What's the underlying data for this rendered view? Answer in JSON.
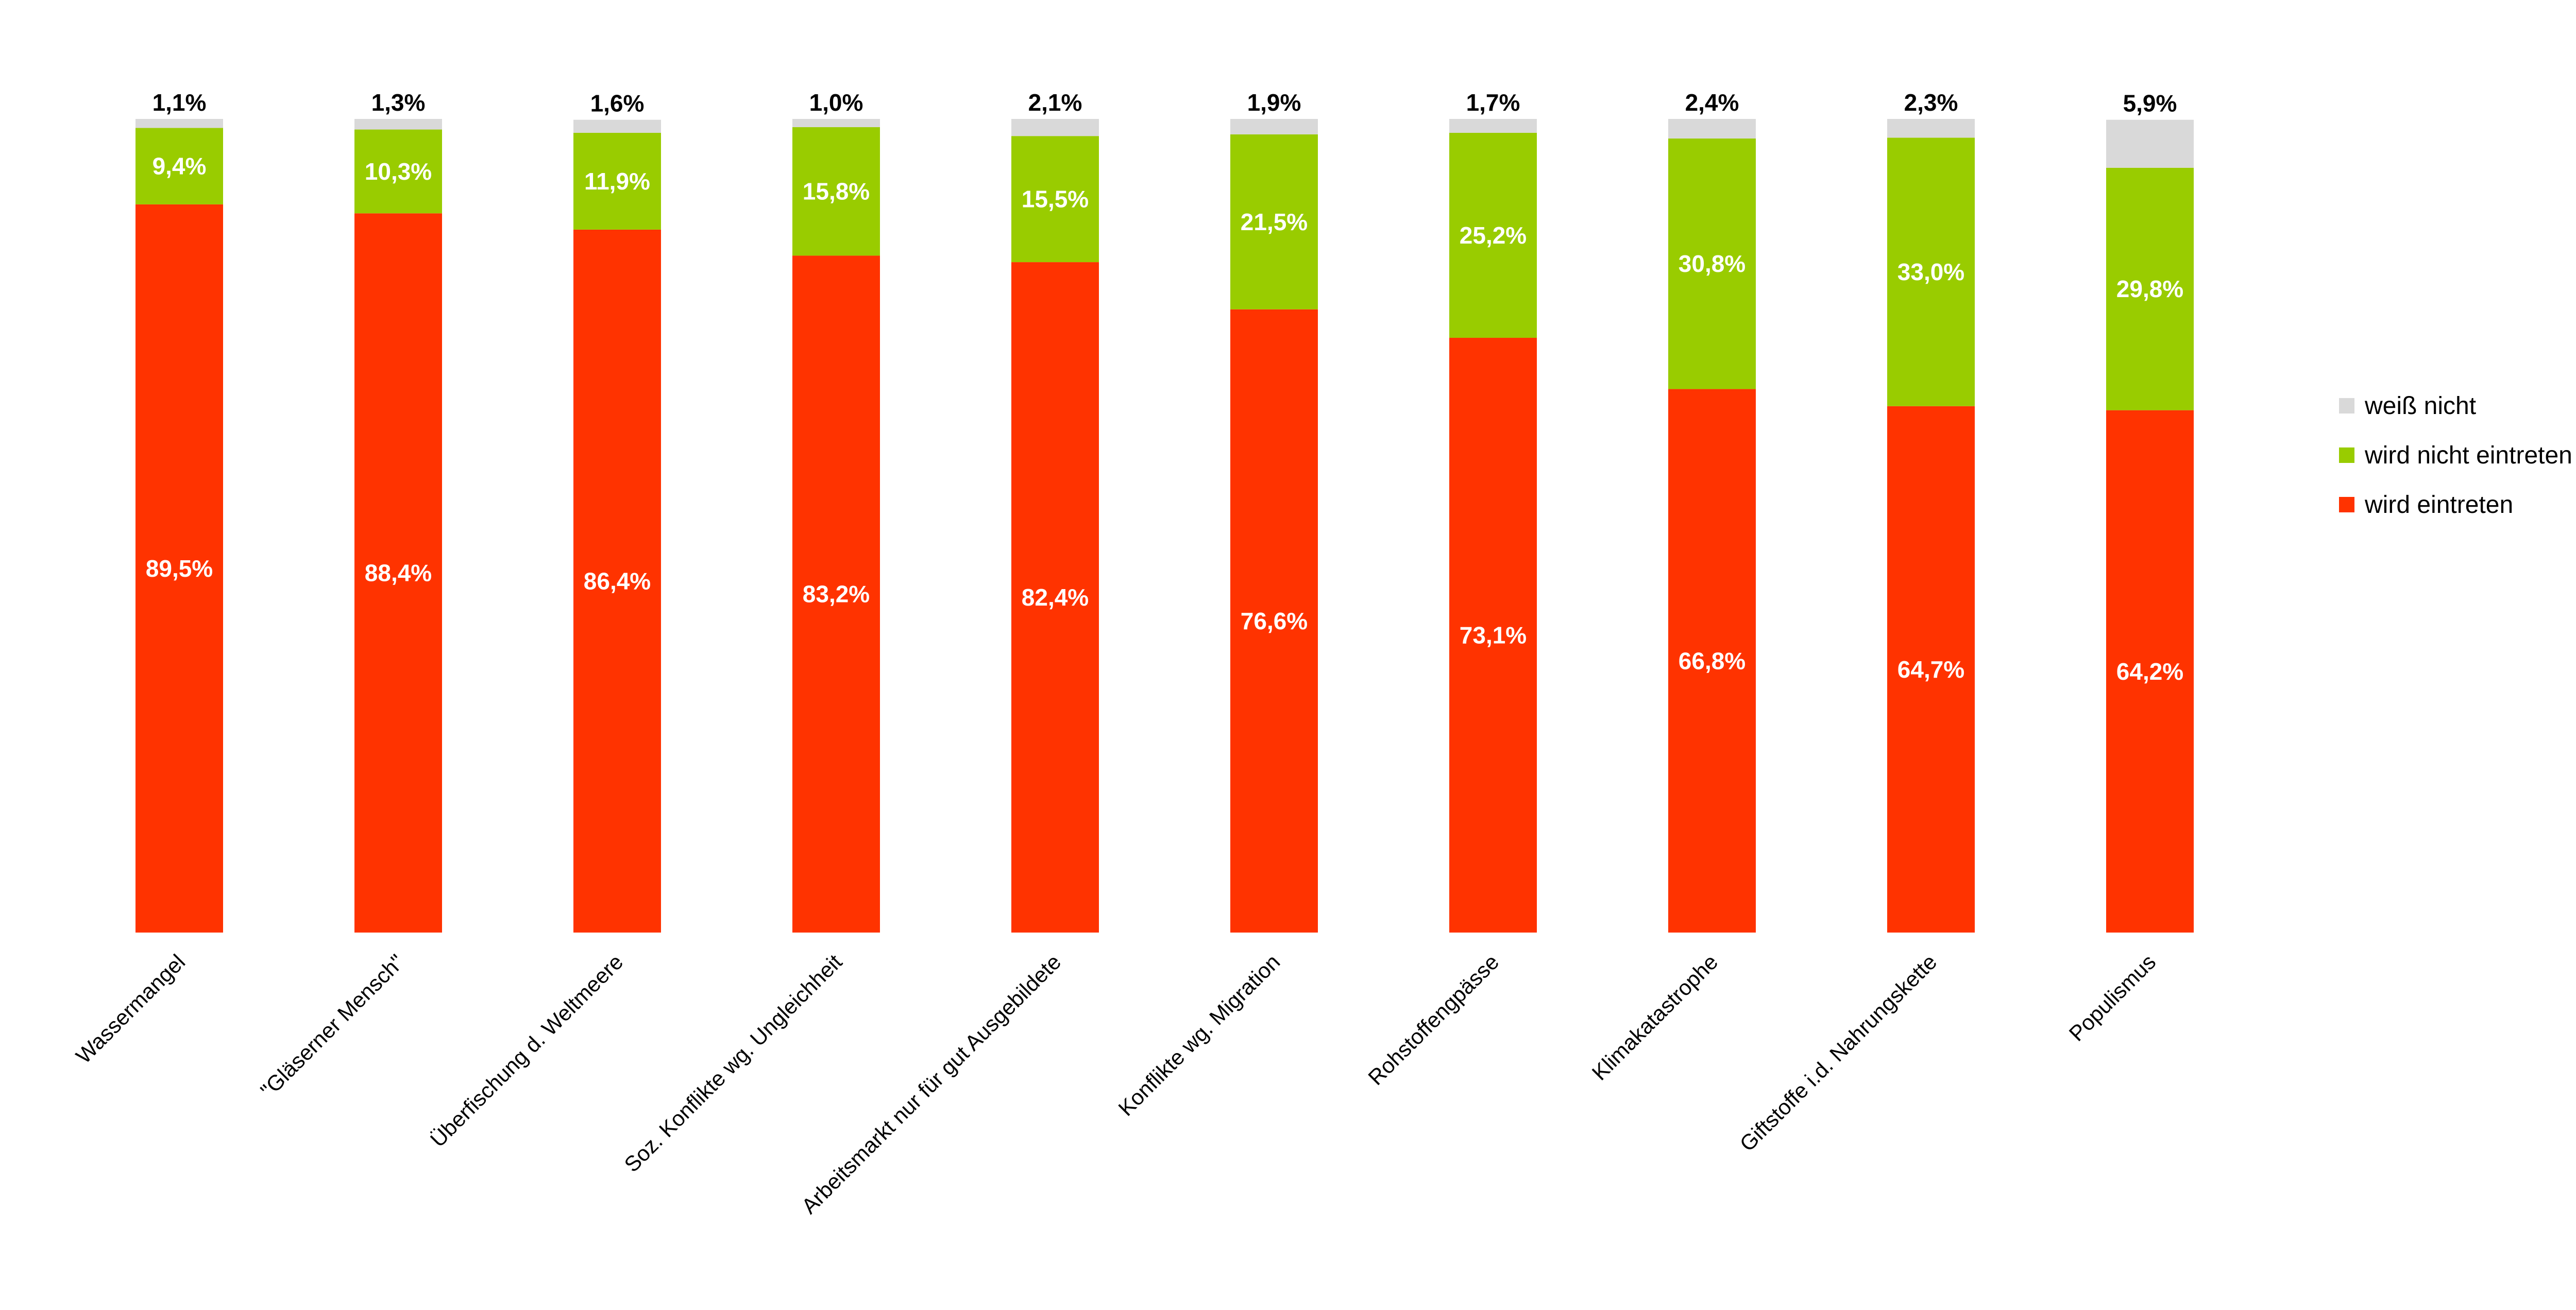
{
  "chart_data": {
    "type": "bar",
    "stacked": true,
    "percent": true,
    "title": "",
    "xlabel": "",
    "ylabel": "",
    "ylim": [
      0,
      100
    ],
    "grid": false,
    "legend_position": "right",
    "categories": [
      "Wassermangel",
      "\"Gläserner Mensch\"",
      "Überfischung d. Weltmeere",
      "Soz. Konflikte wg. Ungleichheit",
      "Arbeitsmarkt nur für gut Ausgebildete",
      "Konflikte wg. Migration",
      "Rohstoffengpässe",
      "Klimakatastrophe",
      "Giftstoffe i.d. Nahrungskette",
      "Populismus"
    ],
    "series": [
      {
        "name": "wird eintreten",
        "color": "#FF3300",
        "values": [
          89.5,
          88.4,
          86.4,
          83.2,
          82.4,
          76.6,
          73.1,
          66.8,
          64.7,
          64.2
        ],
        "labels": [
          "89,5%",
          "88,4%",
          "86,4%",
          "83,2%",
          "82,4%",
          "76,6%",
          "73,1%",
          "66,8%",
          "64,7%",
          "64,2%"
        ]
      },
      {
        "name": "wird nicht eintreten",
        "color": "#99CC00",
        "values": [
          9.4,
          10.3,
          11.9,
          15.8,
          15.5,
          21.5,
          25.2,
          30.8,
          33.0,
          29.8
        ],
        "labels": [
          "9,4%",
          "10,3%",
          "11,9%",
          "15,8%",
          "15,5%",
          "21,5%",
          "25,2%",
          "30,8%",
          "33,0%",
          "29,8%"
        ]
      },
      {
        "name": "weiß nicht",
        "color": "#D9D9D9",
        "values": [
          1.1,
          1.3,
          1.6,
          1.0,
          2.1,
          1.9,
          1.7,
          2.4,
          2.3,
          5.9
        ],
        "labels": [
          "1,1%",
          "1,3%",
          "1,6%",
          "1,0%",
          "2,1%",
          "1,9%",
          "1,7%",
          "2,4%",
          "2,3%",
          "5,9%"
        ]
      }
    ],
    "legend": [
      "weiß nicht",
      "wird nicht eintreten",
      "wird eintreten"
    ]
  }
}
